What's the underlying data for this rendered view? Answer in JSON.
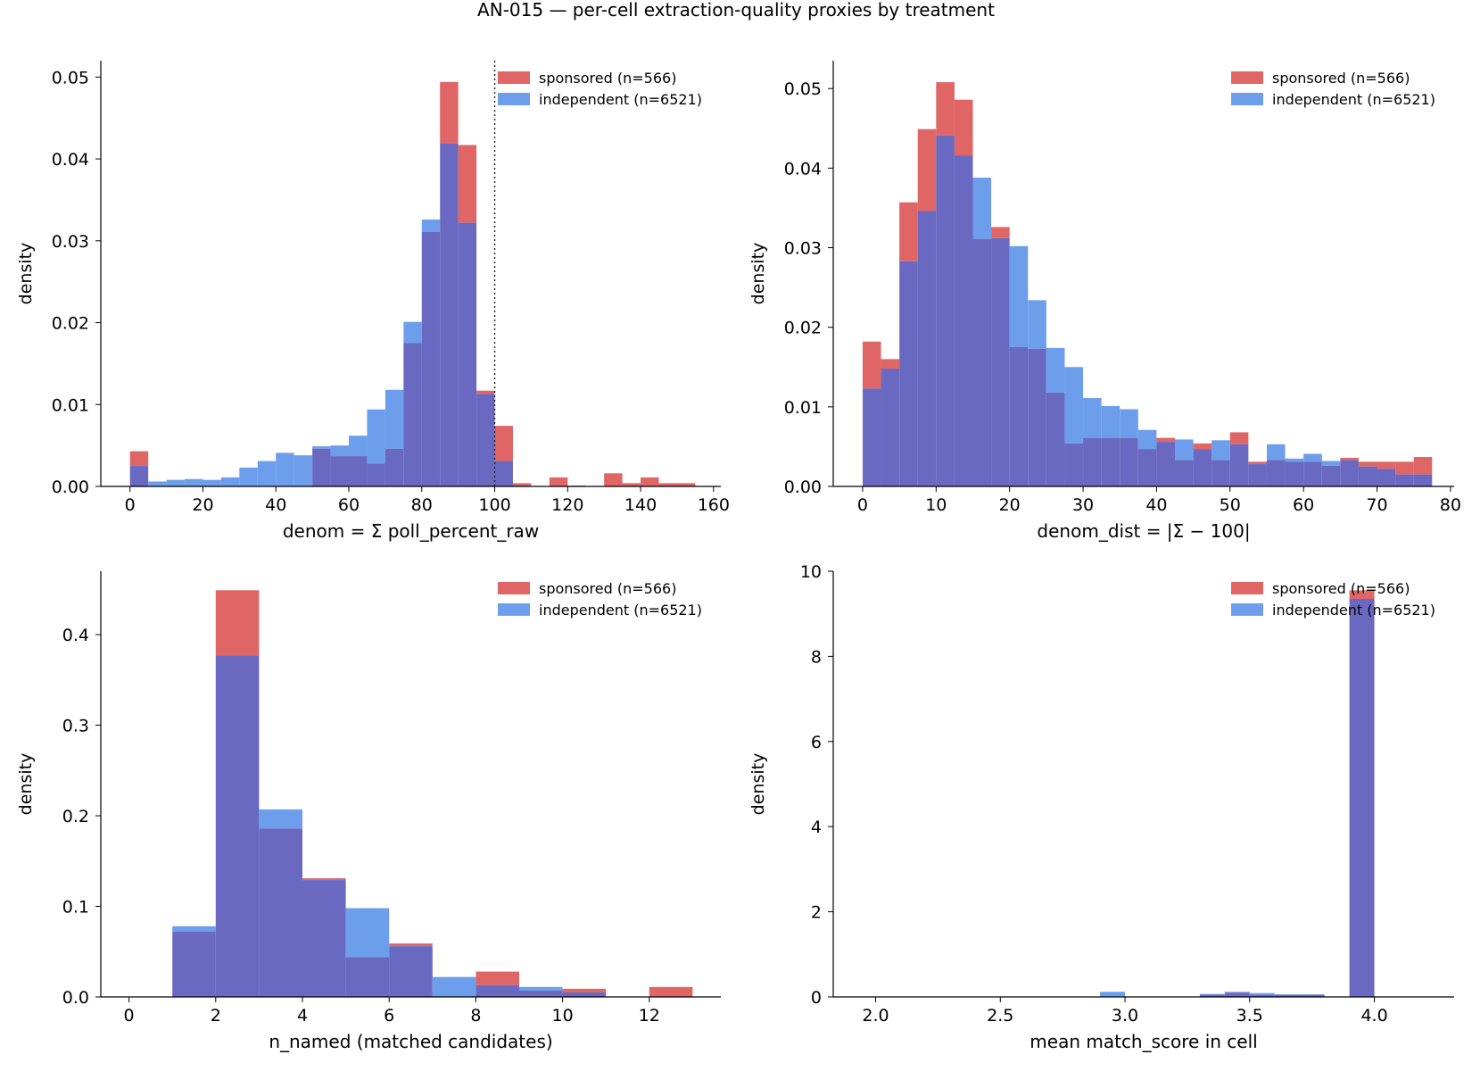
{
  "figure": {
    "title": "AN-015 — per-cell extraction-quality proxies by treatment"
  },
  "colors": {
    "sponsored": "#e06666",
    "independent": "#6d9eeb",
    "overlap": "#6a69c2"
  },
  "chart_data": [
    {
      "type": "bar",
      "id": "denom",
      "xlabel": "denom = Σ poll_percent_raw",
      "ylabel": "density",
      "xlim": [
        -8,
        162
      ],
      "ylim": [
        0,
        0.052
      ],
      "xticks": [
        0,
        20,
        40,
        60,
        80,
        100,
        120,
        140,
        160
      ],
      "yticks": [
        0.0,
        0.01,
        0.02,
        0.03,
        0.04,
        0.05
      ],
      "ytick_labels": [
        "0.00",
        "0.01",
        "0.02",
        "0.03",
        "0.04",
        "0.05"
      ],
      "vline": 100,
      "legend_position": "upper right",
      "x_edges": [
        0,
        5,
        10,
        15,
        20,
        25,
        30,
        35,
        40,
        45,
        50,
        55,
        60,
        65,
        70,
        75,
        80,
        85,
        90,
        95,
        100,
        105,
        110,
        115,
        120,
        125,
        130,
        135,
        140,
        145,
        150,
        155
      ],
      "series": [
        {
          "name": "sponsored (n=566)",
          "key": "sponsored",
          "values": [
            0.0043,
            0,
            0,
            0,
            0,
            0,
            0,
            0,
            0,
            0,
            0.0046,
            0.0037,
            0.0037,
            0.0028,
            0.0046,
            0.0175,
            0.0311,
            0.0494,
            0.0417,
            0.0117,
            0.0074,
            0.0004,
            0,
            0.0011,
            0,
            0,
            0.0016,
            0.0004,
            0.0011,
            0.0004,
            0.0004
          ]
        },
        {
          "name": "independent (n=6521)",
          "key": "independent",
          "values": [
            0.0025,
            0.0006,
            0.0008,
            0.0009,
            0.0008,
            0.0011,
            0.0023,
            0.0031,
            0.0041,
            0.0038,
            0.0049,
            0.005,
            0.0062,
            0.0094,
            0.0118,
            0.0201,
            0.0326,
            0.0419,
            0.0322,
            0.0113,
            0.0031,
            0.0001,
            0,
            0,
            0.0001,
            0,
            0,
            0,
            0,
            0,
            0
          ]
        }
      ]
    },
    {
      "type": "bar",
      "id": "denom_dist",
      "xlabel": "denom_dist = |Σ − 100|",
      "ylabel": "density",
      "xlim": [
        -4,
        80.5
      ],
      "ylim": [
        0,
        0.0535
      ],
      "xticks": [
        0,
        10,
        20,
        30,
        40,
        50,
        60,
        70,
        80
      ],
      "yticks": [
        0.0,
        0.01,
        0.02,
        0.03,
        0.04,
        0.05
      ],
      "ytick_labels": [
        "0.00",
        "0.01",
        "0.02",
        "0.03",
        "0.04",
        "0.05"
      ],
      "legend_position": "upper right",
      "x_edges": [
        0,
        2.5,
        5,
        7.5,
        10,
        12.5,
        15,
        17.5,
        20,
        22.5,
        25,
        27.5,
        30,
        32.5,
        35,
        37.5,
        40,
        42.5,
        45,
        47.5,
        50,
        52.5,
        55,
        57.5,
        60,
        62.5,
        65,
        67.5,
        70,
        72.5,
        75,
        77.5
      ],
      "series": [
        {
          "name": "sponsored (n=566)",
          "key": "sponsored",
          "values": [
            0.0182,
            0.016,
            0.0357,
            0.0449,
            0.0508,
            0.0486,
            0.0311,
            0.0326,
            0.0175,
            0.0173,
            0.0118,
            0.0054,
            0.0061,
            0.0061,
            0.0061,
            0.0047,
            0.0061,
            0.0033,
            0.0054,
            0.0033,
            0.0068,
            0.0031,
            0.0033,
            0.0031,
            0.0031,
            0.0026,
            0.0036,
            0.0031,
            0.0031,
            0.0031,
            0.0037
          ]
        },
        {
          "name": "independent (n=6521)",
          "key": "independent",
          "values": [
            0.0123,
            0.0148,
            0.0283,
            0.0346,
            0.0441,
            0.0416,
            0.0388,
            0.0312,
            0.0302,
            0.0234,
            0.0174,
            0.015,
            0.0111,
            0.0101,
            0.0097,
            0.0071,
            0.0056,
            0.0059,
            0.0047,
            0.0058,
            0.0053,
            0.0028,
            0.0053,
            0.0035,
            0.0041,
            0.0032,
            0.0033,
            0.0025,
            0.0022,
            0.0015,
            0.0015
          ]
        }
      ]
    },
    {
      "type": "bar",
      "id": "n_named",
      "xlabel": "n_named (matched candidates)",
      "ylabel": "density",
      "xlim": [
        -0.65,
        13.65
      ],
      "ylim": [
        0,
        0.47
      ],
      "xticks": [
        0,
        2,
        4,
        6,
        8,
        10,
        12
      ],
      "yticks": [
        0.0,
        0.1,
        0.2,
        0.3,
        0.4
      ],
      "ytick_labels": [
        "0.0",
        "0.1",
        "0.2",
        "0.3",
        "0.4"
      ],
      "legend_position": "upper right",
      "x_edges": [
        1,
        2,
        3,
        4,
        5,
        6,
        7,
        8,
        9,
        10,
        11,
        12,
        13
      ],
      "series": [
        {
          "name": "sponsored (n=566)",
          "key": "sponsored",
          "values": [
            0.072,
            0.449,
            0.186,
            0.131,
            0.044,
            0.059,
            0,
            0.028,
            0.007,
            0.009,
            0,
            0.011
          ]
        },
        {
          "name": "independent (n=6521)",
          "key": "independent",
          "values": [
            0.078,
            0.377,
            0.207,
            0.129,
            0.098,
            0.056,
            0.022,
            0.013,
            0.011,
            0.005,
            0,
            0
          ]
        }
      ]
    },
    {
      "type": "bar",
      "id": "match_score",
      "xlabel": "mean match_score in cell",
      "ylabel": "density",
      "xlim": [
        1.83,
        4.32
      ],
      "ylim": [
        0,
        10
      ],
      "xticks": [
        2.0,
        2.5,
        3.0,
        3.5,
        4.0
      ],
      "xtick_labels": [
        "2.0",
        "2.5",
        "3.0",
        "3.5",
        "4.0"
      ],
      "yticks": [
        0,
        2,
        4,
        6,
        8,
        10
      ],
      "legend_position": "upper right",
      "x_edges": [
        2.9,
        3.0,
        3.3,
        3.4,
        3.5,
        3.6,
        3.8,
        3.9,
        4.0
      ],
      "series": [
        {
          "name": "sponsored (n=566)",
          "key": "sponsored",
          "values": [
            0.0,
            0,
            0.05,
            0.1,
            0.05,
            0.05,
            0,
            9.55
          ]
        },
        {
          "name": "independent (n=6521)",
          "key": "independent",
          "values": [
            0.12,
            0,
            0.07,
            0.12,
            0.09,
            0.06,
            0,
            9.35
          ]
        }
      ]
    }
  ]
}
